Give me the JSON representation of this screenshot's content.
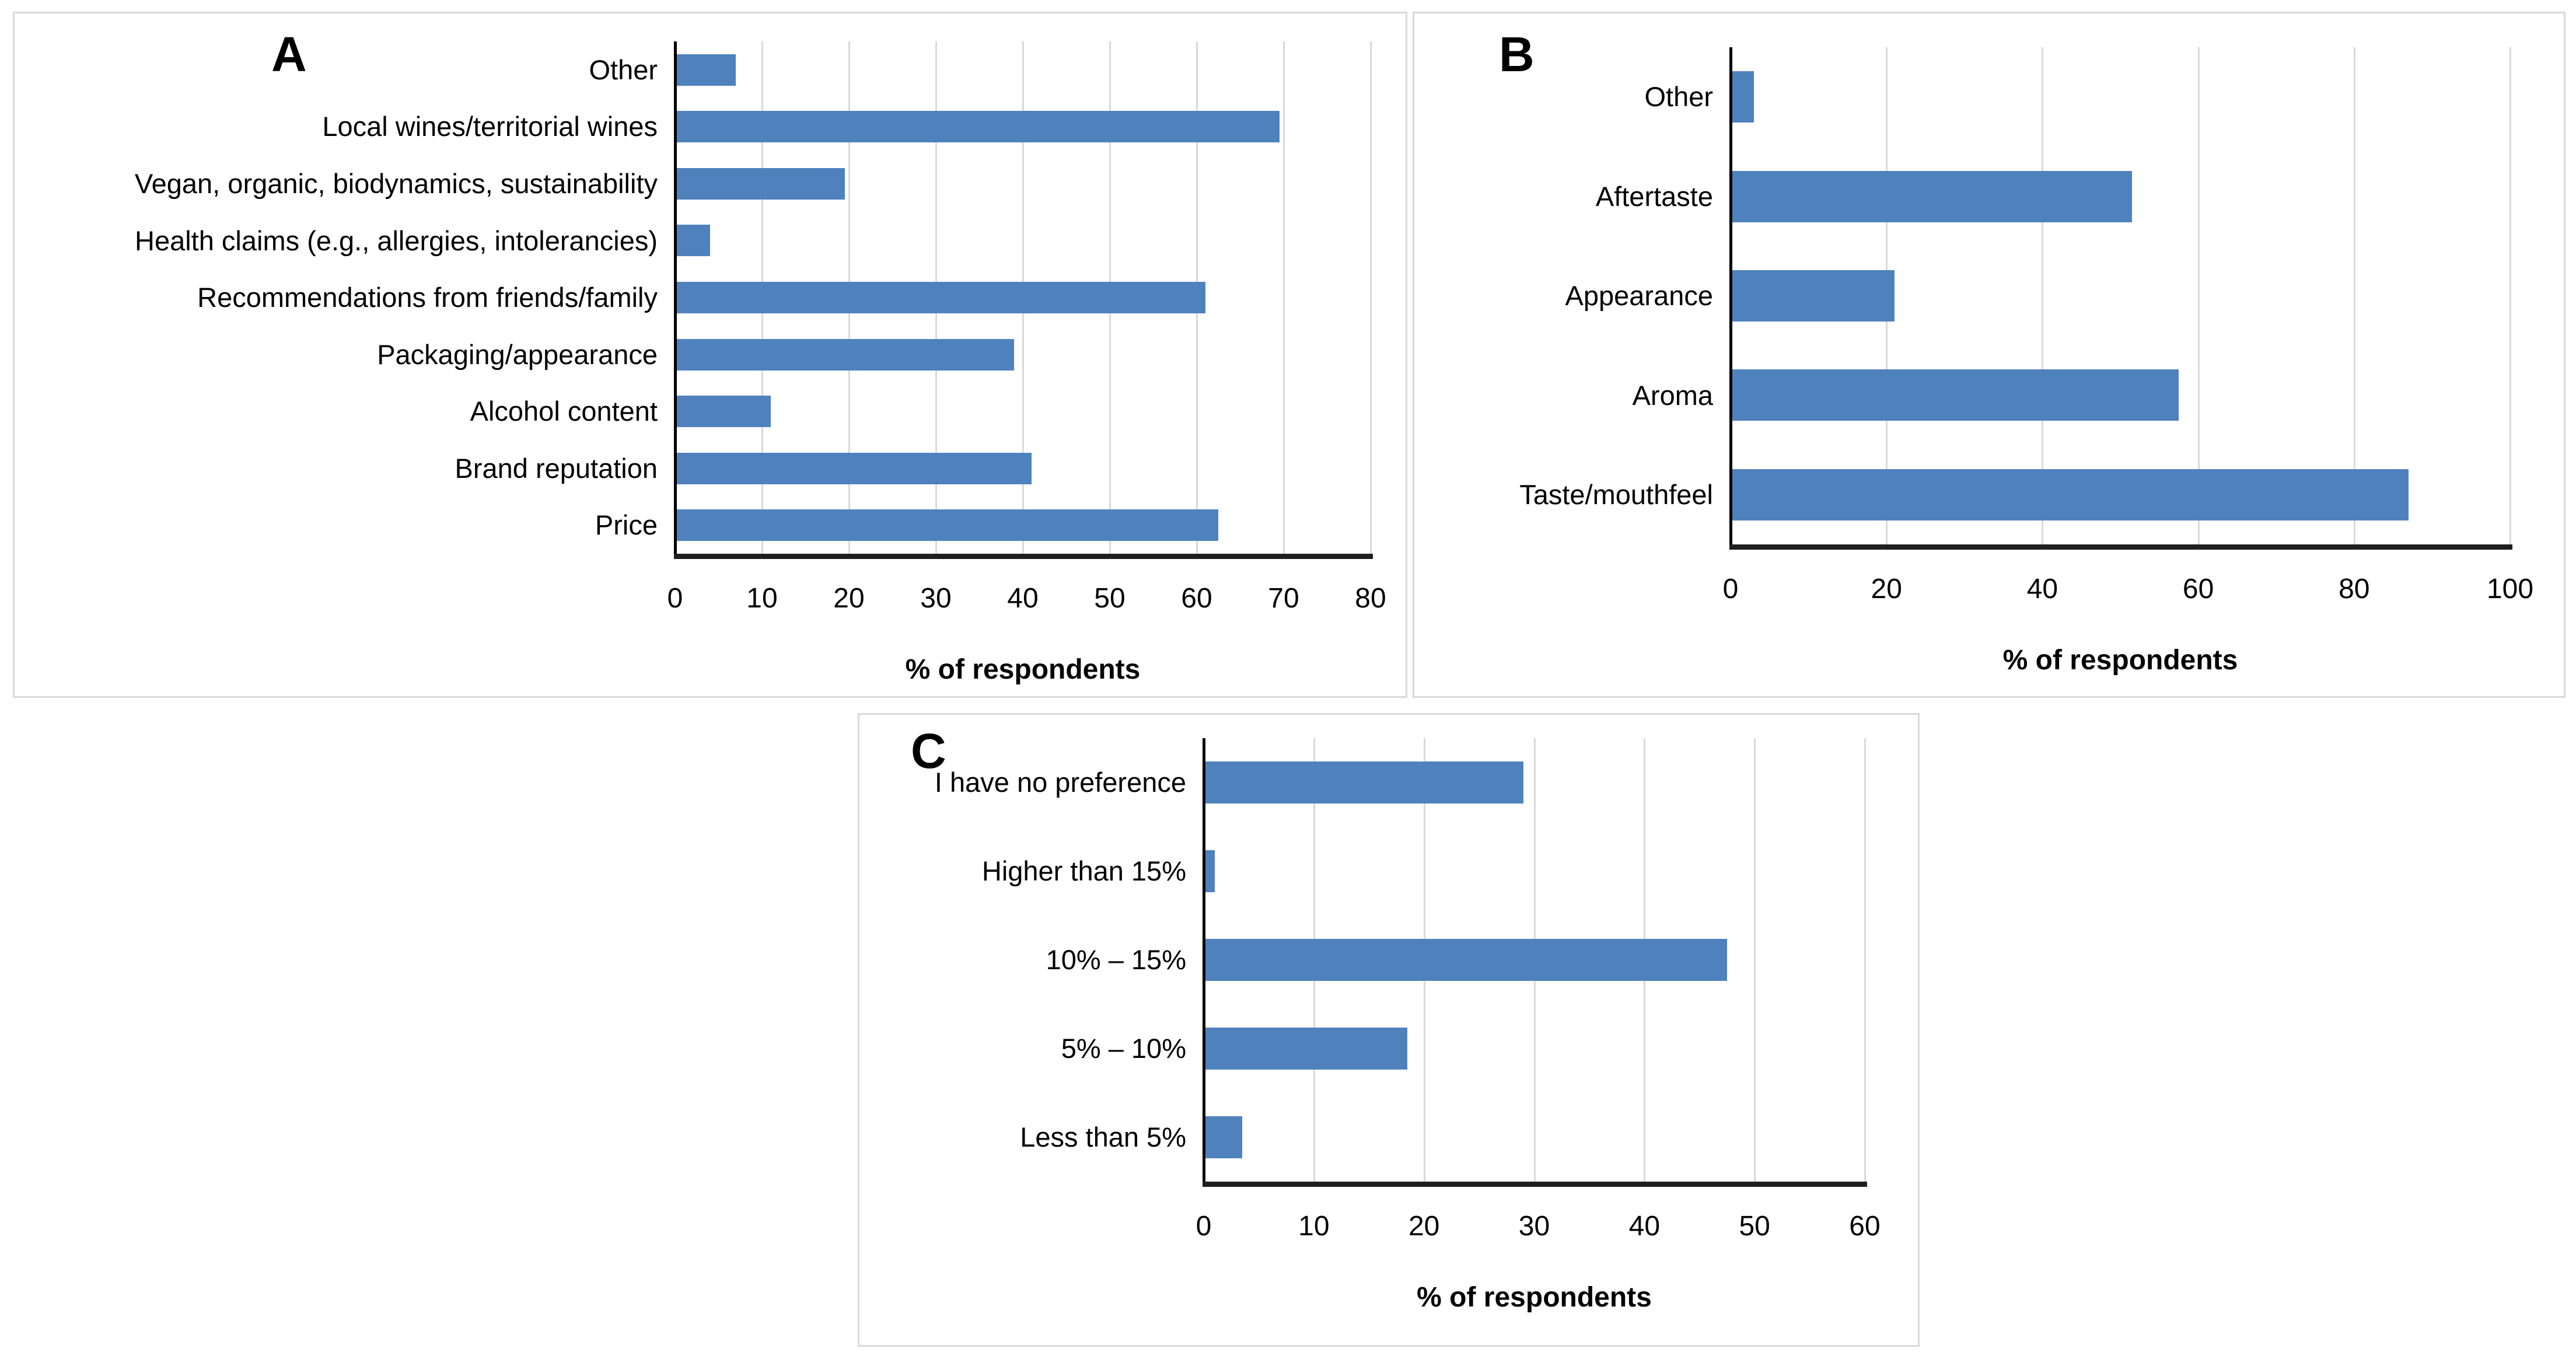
{
  "figure": {
    "background": "#ffffff",
    "panel_border_color": "#d9d9d9",
    "bar_color": "#4f81bd",
    "gridline_color": "#d9d9d9",
    "axis_line_color": "#1f1f1f"
  },
  "chart_data": [
    {
      "panel_label": "A",
      "type": "bar",
      "orientation": "horizontal",
      "title": "",
      "xlabel": "% of respondents",
      "ylabel": "",
      "categories": [
        "Other",
        "Local wines/territorial wines",
        "Vegan, organic, biodynamics, sustainability",
        "Health claims (e.g., allergies, intolerancies)",
        "Recommendations from friends/family",
        "Packaging/appearance",
        "Alcohol content",
        "Brand reputation",
        "Price"
      ],
      "values": [
        7,
        69.5,
        19.5,
        4,
        61,
        39,
        11,
        41,
        62.5
      ],
      "xlim": [
        0,
        80
      ],
      "xticks": [
        0,
        10,
        20,
        30,
        40,
        50,
        60,
        70,
        80
      ],
      "grid": "vertical",
      "legend": "none",
      "bar_color": "#4f81bd",
      "gridline_color": "#d9d9d9",
      "axis_color": "#1f1f1f"
    },
    {
      "panel_label": "B",
      "type": "bar",
      "orientation": "horizontal",
      "title": "",
      "xlabel": "% of respondents",
      "ylabel": "",
      "categories": [
        "Other",
        "Aftertaste",
        "Appearance",
        "Aroma",
        "Taste/mouthfeel"
      ],
      "values": [
        3,
        51.5,
        21,
        57.5,
        87
      ],
      "xlim": [
        0,
        100
      ],
      "xticks": [
        0,
        20,
        40,
        60,
        80,
        100
      ],
      "grid": "vertical",
      "legend": "none",
      "bar_color": "#4f81bd",
      "gridline_color": "#d9d9d9",
      "axis_color": "#1f1f1f"
    },
    {
      "panel_label": "C",
      "type": "bar",
      "orientation": "horizontal",
      "title": "",
      "xlabel": "% of respondents",
      "ylabel": "",
      "categories": [
        "I have no preference",
        "Higher than 15%",
        "10% – 15%",
        "5% – 10%",
        "Less than 5%"
      ],
      "values": [
        29,
        1,
        47.5,
        18.5,
        3.5
      ],
      "xlim": [
        0,
        60
      ],
      "xticks": [
        0,
        10,
        20,
        30,
        40,
        50,
        60
      ],
      "grid": "vertical",
      "legend": "none",
      "bar_color": "#4f81bd",
      "gridline_color": "#d9d9d9",
      "axis_color": "#1f1f1f"
    }
  ]
}
